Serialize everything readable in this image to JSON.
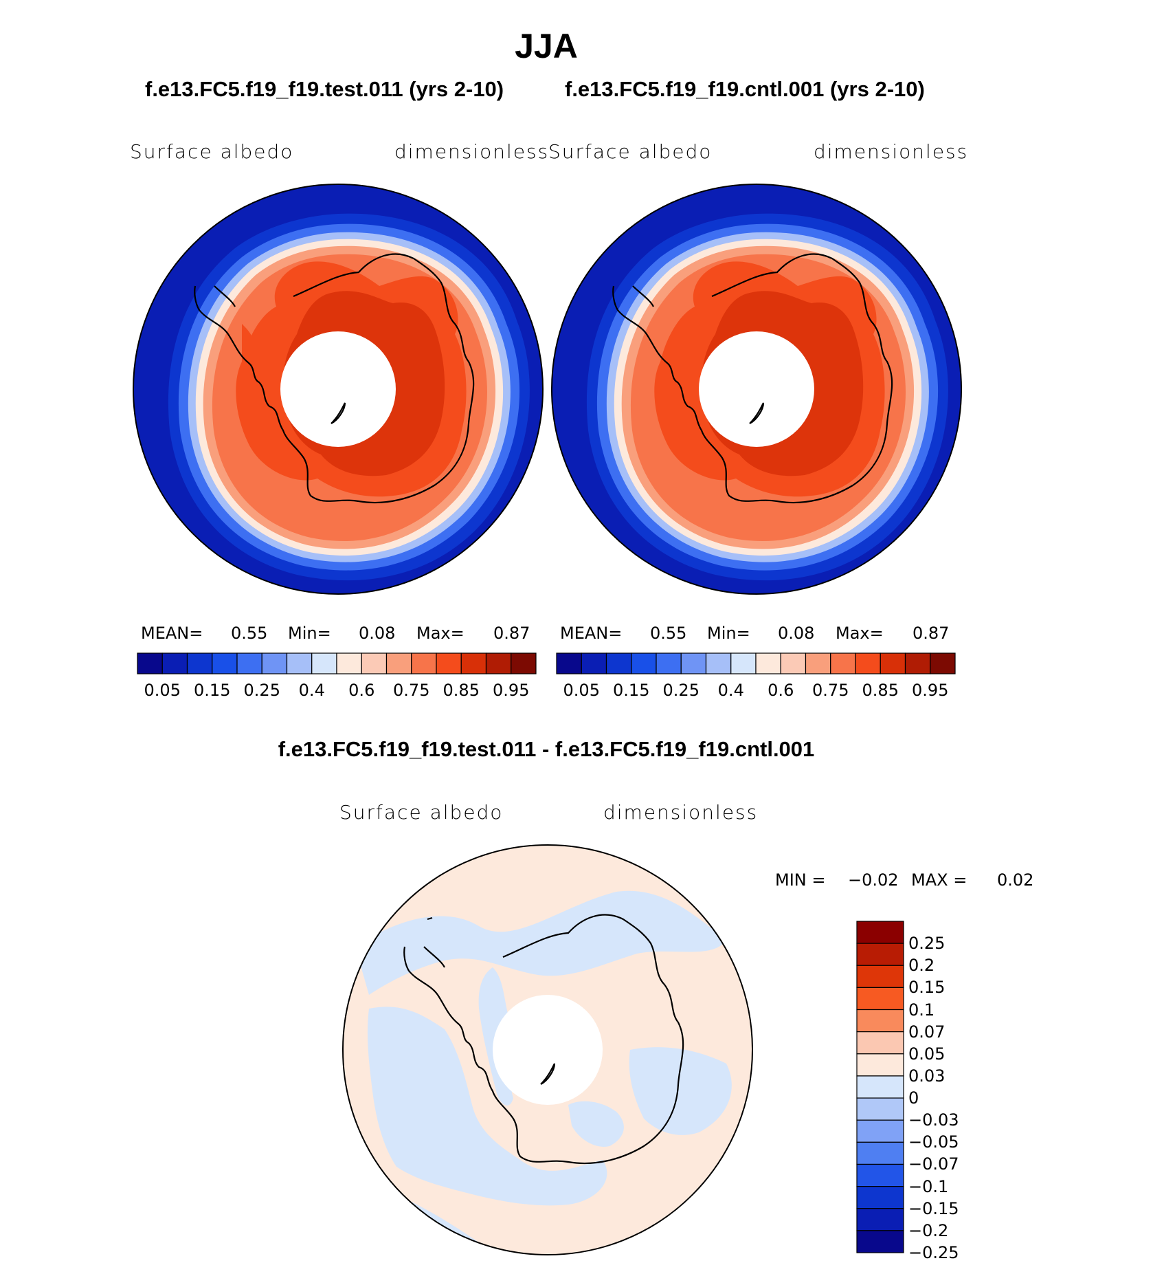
{
  "figure": {
    "season": "JJA"
  },
  "panels": [
    {
      "case_title": "f.e13.FC5.f19_f19.test.011 (yrs 2-10)",
      "variable": "Surface  albedo",
      "units": "dimensionless",
      "stats": {
        "mean_label": "MEAN=",
        "mean": "0.55",
        "min_label": "Min=",
        "min": "0.08",
        "max_label": "Max=",
        "max": "0.87"
      }
    },
    {
      "case_title": "f.e13.FC5.f19_f19.cntl.001 (yrs 2-10)",
      "variable": "Surface  albedo",
      "units": "dimensionless",
      "stats": {
        "mean_label": "MEAN=",
        "mean": "0.55",
        "min_label": "Min=",
        "min": "0.08",
        "max_label": "Max=",
        "max": "0.87"
      }
    }
  ],
  "difference": {
    "title": "f.e13.FC5.f19_f19.test.011 - f.e13.FC5.f19_f19.cntl.001",
    "variable": "Surface  albedo",
    "units": "dimensionless",
    "stats": {
      "min_label": "MIN =",
      "min": "−0.02",
      "max_label": "MAX =",
      "max": "0.02"
    }
  },
  "colorbars": {
    "field": {
      "colors": [
        "#08088c",
        "#0a1eb4",
        "#0d36cf",
        "#1950e8",
        "#3d6ff2",
        "#6f94f5",
        "#a6bff8",
        "#d6e6fb",
        "#fde9dc",
        "#fbcab6",
        "#f99f7c",
        "#f7744a",
        "#f44c1c",
        "#d83008",
        "#b01c04",
        "#7c0a02"
      ],
      "tick_labels": [
        "0.05",
        "0.15",
        "0.25",
        "0.4",
        "0.6",
        "0.75",
        "0.85",
        "0.95"
      ]
    },
    "difference": {
      "colors_top_to_bottom": [
        "#8b0000",
        "#b81c04",
        "#de3608",
        "#f75a22",
        "#f98a5c",
        "#fbc8b2",
        "#fde9dc",
        "#d6e6fb",
        "#b0c8f8",
        "#80a2f6",
        "#4f7ff2",
        "#2255e8",
        "#0d36cf",
        "#0a1eb4",
        "#08088c"
      ],
      "tick_labels": [
        "0.25",
        "0.2",
        "0.15",
        "0.1",
        "0.07",
        "0.05",
        "0.03",
        "0",
        "−0.03",
        "−0.05",
        "−0.07",
        "−0.1",
        "−0.15",
        "−0.2",
        "−0.25"
      ]
    }
  }
}
